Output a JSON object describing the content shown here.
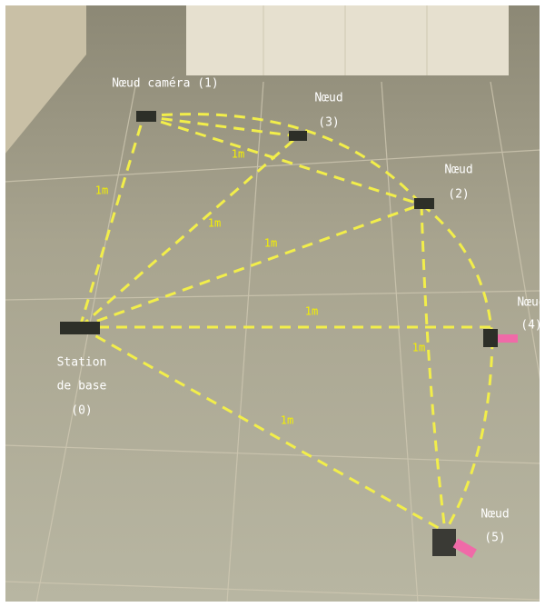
{
  "nodes": [
    {
      "label": [
        "Nœud caméra (1)"
      ]
    },
    {
      "label": [
        "Nœud",
        "(3)"
      ]
    },
    {
      "label": [
        "Nœud",
        "(2)"
      ]
    },
    {
      "label": [
        "Nœud",
        "(4)"
      ]
    },
    {
      "label": [
        "Station",
        "de base",
        "(0)"
      ]
    },
    {
      "label": [
        "Nœud",
        "(5)"
      ]
    }
  ],
  "edges": [
    {
      "label": "1m"
    },
    {
      "label": "1m"
    },
    {
      "label": "1m"
    },
    {
      "label": "1m"
    },
    {
      "label": "1m"
    },
    {
      "label": "1m"
    },
    {
      "label": "1m"
    }
  ]
}
